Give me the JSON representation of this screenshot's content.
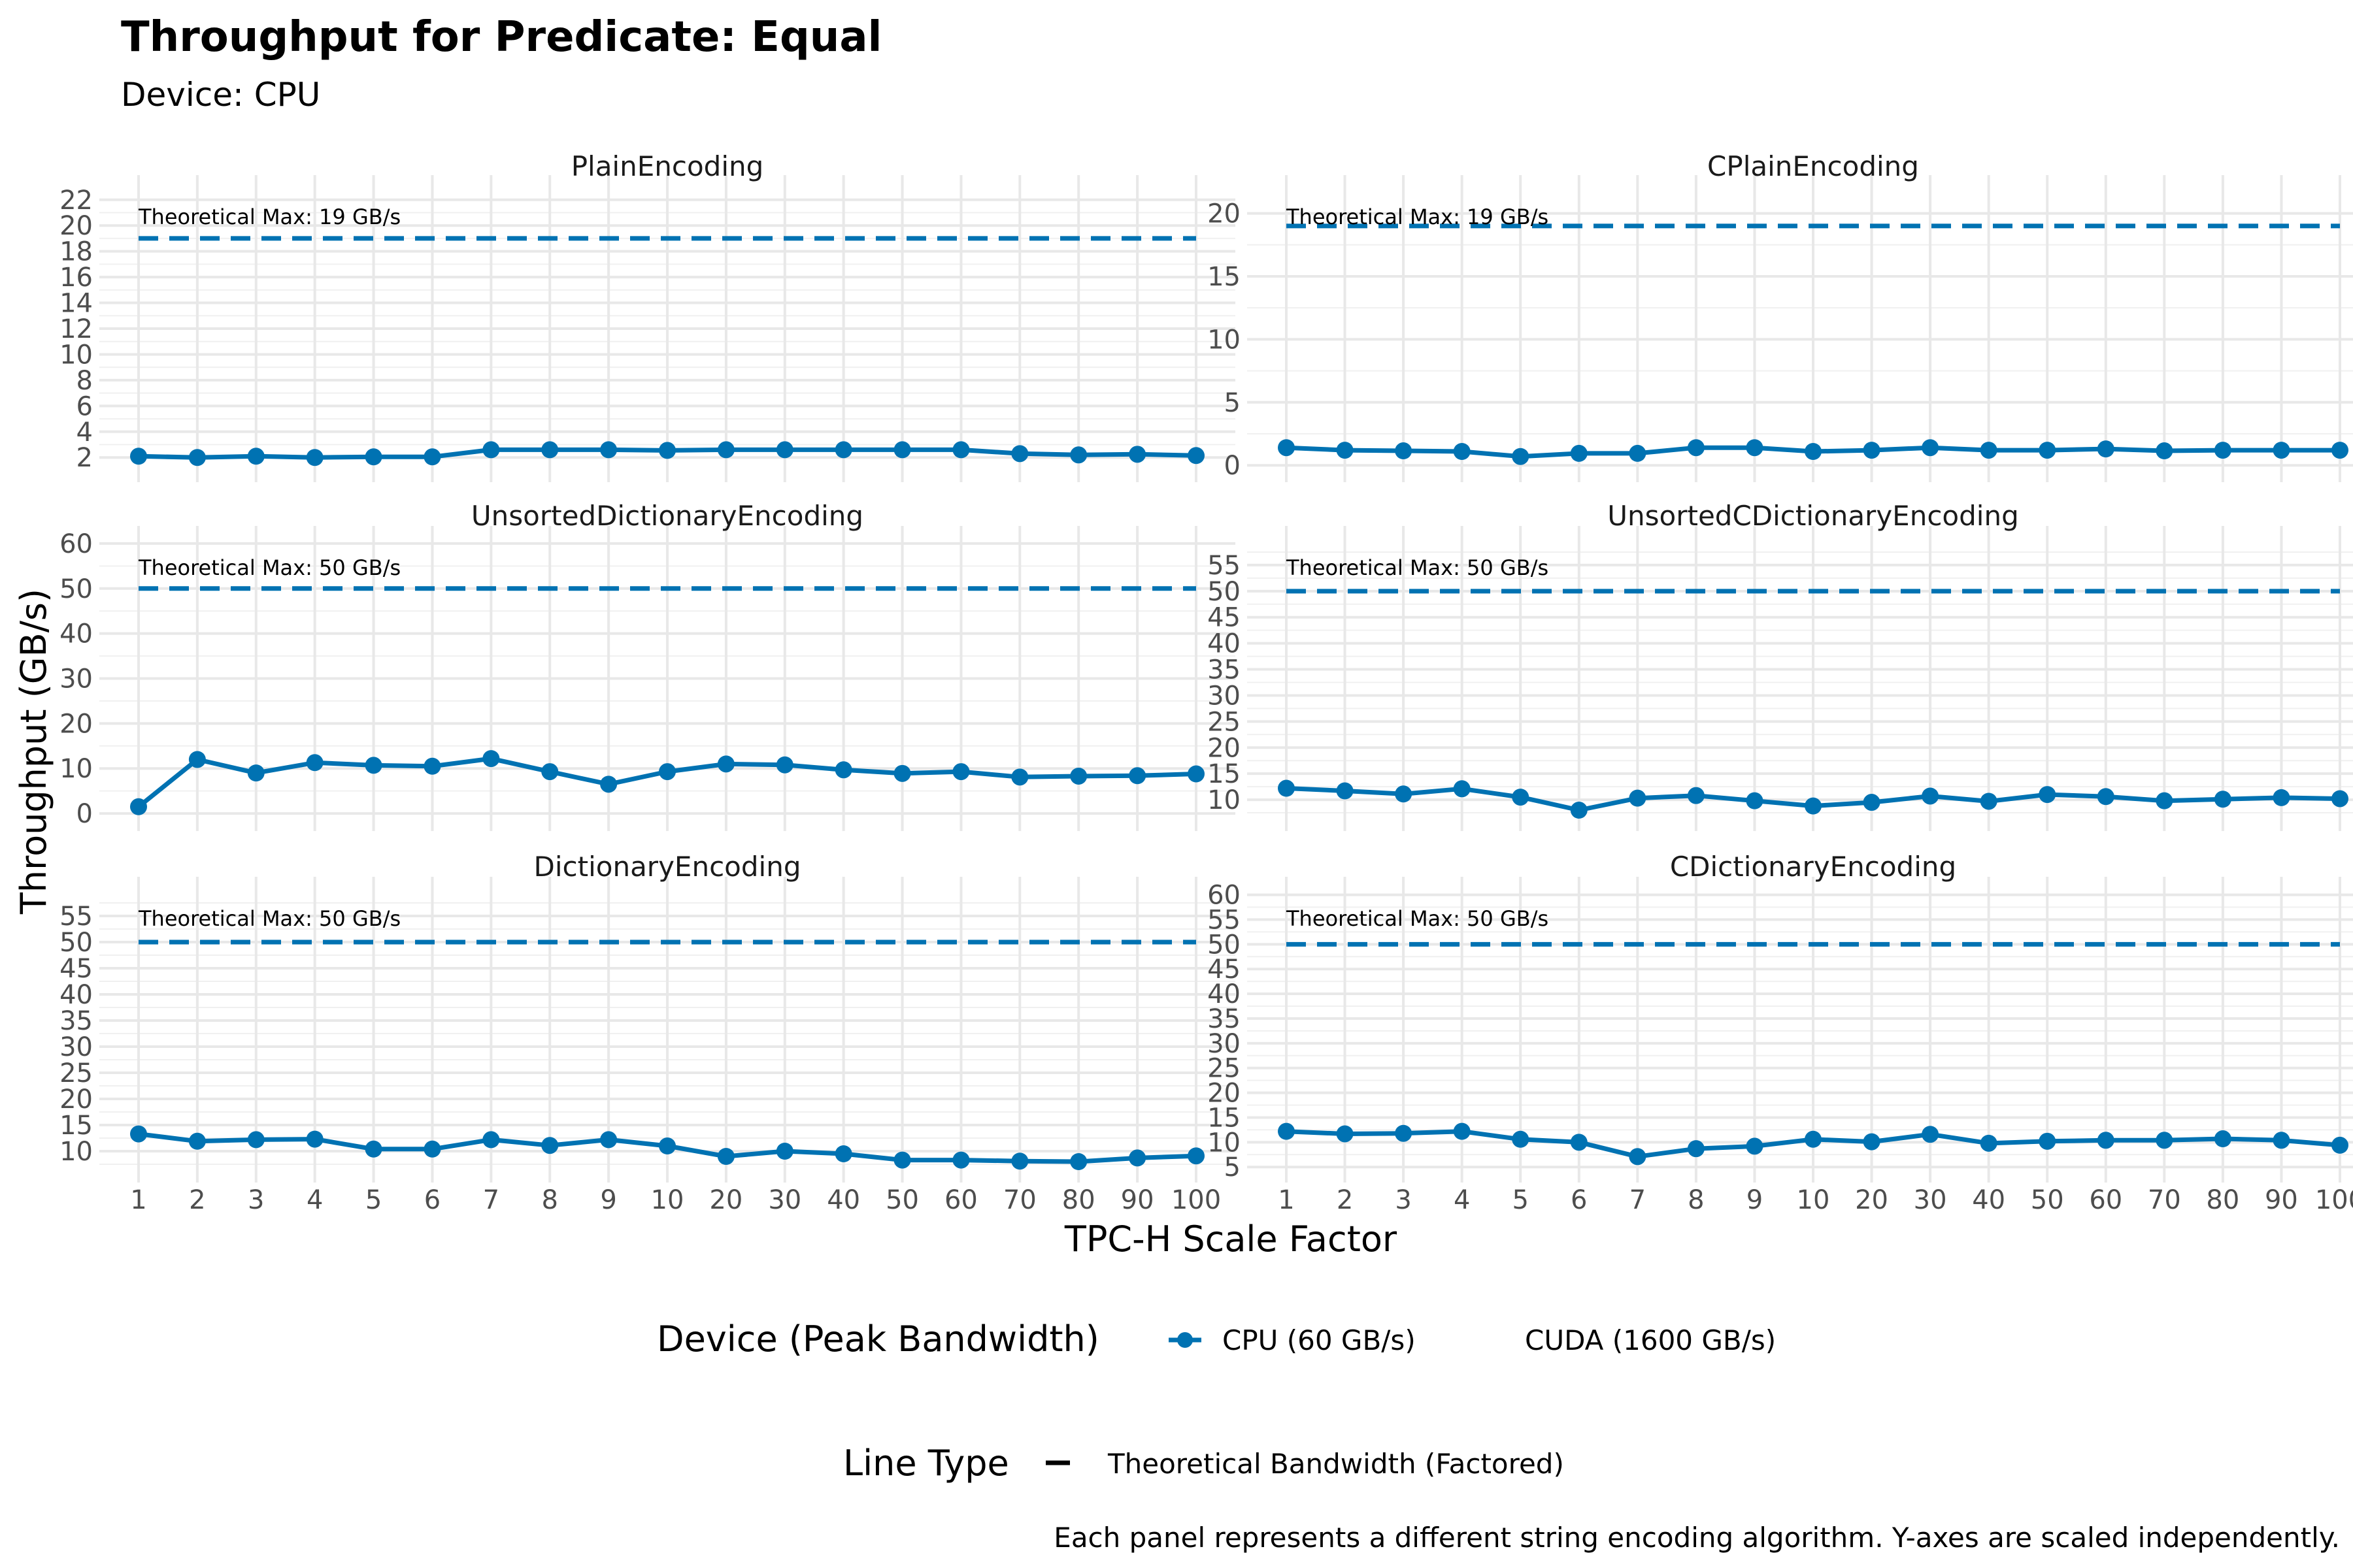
{
  "title": "Throughput for Predicate: Equal",
  "subtitle": "Device: CPU",
  "caption": "Each panel represents a different string encoding algorithm. Y-axes are scaled independently.",
  "colors": {
    "cpu": "#0072B2",
    "cuda": "#D55E00"
  },
  "chart_data": {
    "type": "line",
    "xlabel": "TPC-H Scale Factor",
    "ylabel": "Throughput (GB/s)",
    "categories": [
      "1",
      "2",
      "3",
      "4",
      "5",
      "6",
      "7",
      "8",
      "9",
      "10",
      "20",
      "30",
      "40",
      "50",
      "60",
      "70",
      "80",
      "90",
      "100"
    ],
    "legend": {
      "device_title": "Device (Peak Bandwidth)",
      "device_entries": [
        "CPU (60 GB/s)",
        "CUDA (1600 GB/s)"
      ],
      "linetype_title": "Line Type",
      "linetype_entries": [
        "Theoretical Bandwidth (Factored)"
      ],
      "position": "bottom"
    },
    "panels": [
      {
        "name": "PlainEncoding",
        "ylim": [
          1.1,
          22.9
        ],
        "yticks": [
          2,
          4,
          6,
          8,
          10,
          12,
          14,
          16,
          18,
          20,
          22
        ],
        "theoretical_max": 19,
        "annotation": "Theoretical Max: 19 GB/s",
        "series": [
          {
            "name": "CPU (60 GB/s)",
            "values": [
              2.1,
              2.0,
              2.1,
              2.0,
              2.05,
              2.05,
              2.6,
              2.6,
              2.6,
              2.55,
              2.6,
              2.6,
              2.6,
              2.6,
              2.6,
              2.3,
              2.2,
              2.25,
              2.15
            ]
          }
        ]
      },
      {
        "name": "CPlainEncoding",
        "ylim": [
          -0.3,
          22.0
        ],
        "yticks": [
          0,
          5,
          10,
          15,
          20
        ],
        "theoretical_max": 19,
        "annotation": "Theoretical Max: 19 GB/s",
        "series": [
          {
            "name": "CPU (60 GB/s)",
            "values": [
              1.4,
              1.2,
              1.15,
              1.1,
              0.7,
              0.95,
              0.95,
              1.4,
              1.4,
              1.1,
              1.2,
              1.4,
              1.2,
              1.2,
              1.3,
              1.15,
              1.2,
              1.2,
              1.2
            ]
          }
        ]
      },
      {
        "name": "UnsortedDictionaryEncoding",
        "ylim": [
          -1.0,
          61.0
        ],
        "yticks": [
          0,
          10,
          20,
          30,
          40,
          50,
          60
        ],
        "theoretical_max": 50,
        "annotation": "Theoretical Max: 50 GB/s",
        "series": [
          {
            "name": "CPU (60 GB/s)",
            "values": [
              1.5,
              12.0,
              9.0,
              11.3,
              10.7,
              10.5,
              12.2,
              9.3,
              6.5,
              9.3,
              11.0,
              10.8,
              9.7,
              8.9,
              9.3,
              8.1,
              8.3,
              8.4,
              8.8
            ]
          }
        ]
      },
      {
        "name": "UnsortedCDictionaryEncoding",
        "ylim": [
          6.5,
          60.0
        ],
        "yticks": [
          10,
          15,
          20,
          25,
          30,
          35,
          40,
          45,
          50,
          55
        ],
        "theoretical_max": 50,
        "annotation": "Theoretical Max: 50 GB/s",
        "series": [
          {
            "name": "CPU (60 GB/s)",
            "values": [
              12.2,
              11.7,
              11.1,
              12.1,
              10.5,
              8.0,
              10.3,
              10.8,
              9.8,
              8.8,
              9.5,
              10.7,
              9.7,
              11.0,
              10.6,
              9.8,
              10.1,
              10.4,
              10.2
            ]
          }
        ]
      },
      {
        "name": "DictionaryEncoding",
        "ylim": [
          6.5,
          60.0
        ],
        "yticks": [
          10,
          15,
          20,
          25,
          30,
          35,
          40,
          45,
          50,
          55
        ],
        "theoretical_max": 50,
        "annotation": "Theoretical Max: 50 GB/s",
        "series": [
          {
            "name": "CPU (60 GB/s)",
            "values": [
              13.3,
              11.9,
              12.2,
              12.3,
              10.4,
              10.4,
              12.2,
              11.1,
              12.2,
              11.0,
              9.0,
              10.0,
              9.5,
              8.3,
              8.3,
              8.1,
              8.0,
              8.7,
              9.1
            ]
          }
        ]
      },
      {
        "name": "CDictionaryEncoding",
        "ylim": [
          4.5,
          61.0
        ],
        "yticks": [
          5,
          10,
          15,
          20,
          25,
          30,
          35,
          40,
          45,
          50,
          55,
          60
        ],
        "theoretical_max": 50,
        "annotation": "Theoretical Max: 50 GB/s",
        "series": [
          {
            "name": "CPU (60 GB/s)",
            "values": [
              12.2,
              11.7,
              11.8,
              12.2,
              10.6,
              10.0,
              7.1,
              8.7,
              9.2,
              10.6,
              10.1,
              11.6,
              9.8,
              10.2,
              10.4,
              10.4,
              10.7,
              10.4,
              9.4
            ]
          }
        ]
      }
    ]
  }
}
